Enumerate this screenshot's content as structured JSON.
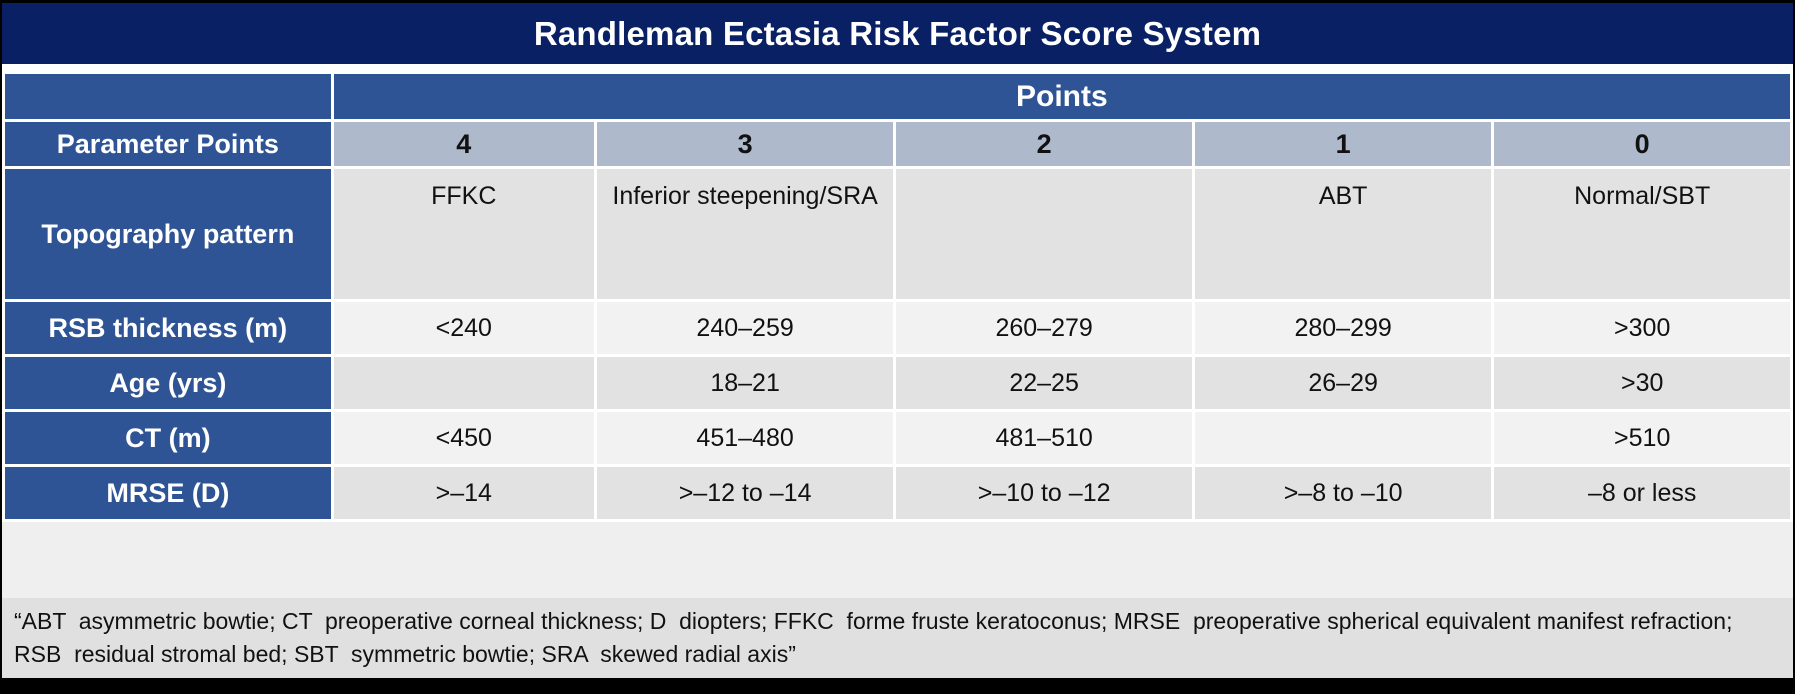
{
  "title": "Randleman Ectasia Risk Factor Score System",
  "table": {
    "points_header": "Points",
    "corner_label": "Parameter Points",
    "point_columns": [
      "4",
      "3",
      "2",
      "1",
      "0"
    ],
    "rows": [
      {
        "label": "Topography pattern",
        "values": [
          "FFKC",
          "Inferior steepening/SRA",
          "",
          "ABT",
          "Normal/SBT"
        ]
      },
      {
        "label": "RSB thickness (m)",
        "values": [
          "<240",
          "240–259",
          "260–279",
          "280–299",
          ">300"
        ]
      },
      {
        "label": "Age (yrs)",
        "values": [
          "",
          "18–21",
          "22–25",
          "26–29",
          ">30"
        ]
      },
      {
        "label": "CT (m)",
        "values": [
          "<450",
          "451–480",
          "481–510",
          "",
          ">510"
        ]
      },
      {
        "label": "MRSE (D)",
        "values": [
          ">–14",
          ">–12 to –14",
          ">–10 to –12",
          ">–8 to –10",
          "–8 or less"
        ]
      }
    ]
  },
  "footnote": "“ABT  asymmetric bowtie; CT  preoperative corneal thickness; D  diopters; FFKC  forme fruste keratoconus; MRSE  preoperative spherical equivalent manifest refraction; RSB  residual stromal bed; SBT  symmetric bowtie; SRA  skewed radial axis”",
  "colors": {
    "frame": "#000000",
    "title_bar": "#0a2064",
    "header_blue": "#2f5496",
    "points_scale_bg": "#aeb9cc",
    "row_band_dark": "#e2e2e2",
    "row_band_light": "#f2f2f2",
    "footnote_bg": "#e0e0e0",
    "divider": "#ffffff"
  }
}
